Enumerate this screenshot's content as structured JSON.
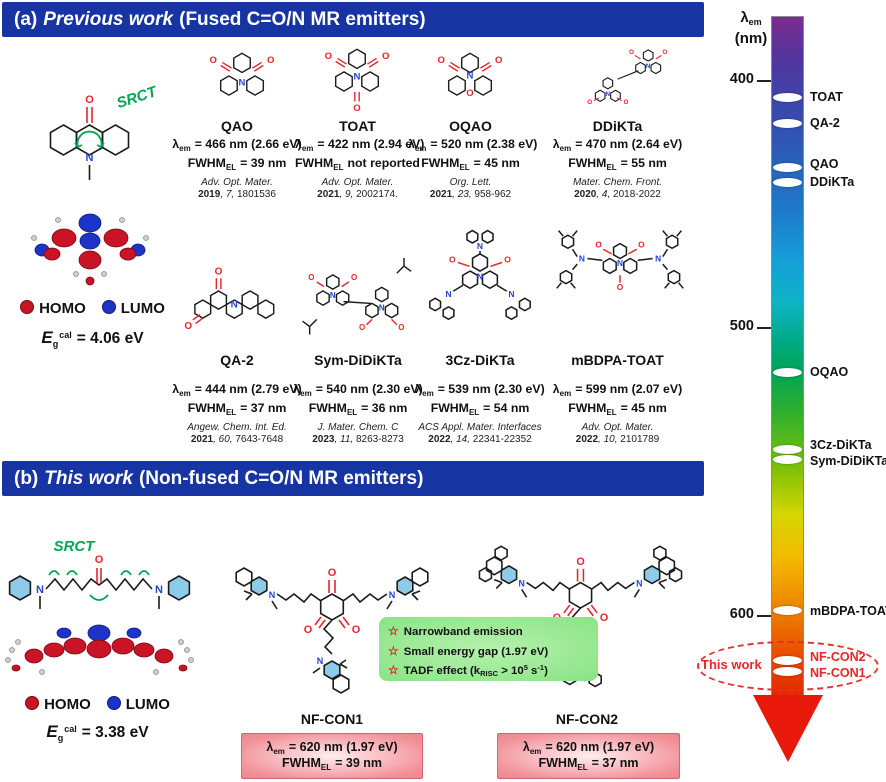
{
  "labels": {
    "lambda_sym": "λ",
    "lambda_sub": "em",
    "fwhm": "FWHM",
    "fwhm_sub": "EL",
    "homo": "HOMO",
    "lumo": "LUMO",
    "star": "☆",
    "eg_sym": "E",
    "eg_sub": "g",
    "eg_sup": "cal"
  },
  "panel_a": {
    "header": {
      "prefix": "(a)",
      "italic": "Previous work",
      "rest": "(Fused C=O/N MR emitters)"
    },
    "srct": "SRCT",
    "eg_value": "= 4.06 eV",
    "emitters": [
      {
        "name": "QAO",
        "lam": "= 466 nm (2.66 eV)",
        "fwhm": "= 39 nm",
        "journal": "Adv. Opt. Mater.",
        "year": "2019",
        "vol": ", 7, ",
        "pages": "1801536"
      },
      {
        "name": "TOAT",
        "lam": "= 422 nm (2.94 eV)",
        "fwhm": "not reported",
        "journal": "Adv. Opt. Mater.",
        "year": "2021",
        "vol": ", 9, ",
        "pages": "2002174."
      },
      {
        "name": "OQAO",
        "lam": "= 520 nm (2.38 eV)",
        "fwhm": "= 45 nm",
        "journal": "Org. Lett.",
        "year": "2021",
        "vol": ", 23, ",
        "pages": "958-962"
      },
      {
        "name": "DDiKTa",
        "lam": "= 470 nm (2.64 eV)",
        "fwhm": "= 55 nm",
        "journal": "Mater. Chem. Front.",
        "year": "2020",
        "vol": ", 4, ",
        "pages": "2018-2022"
      },
      {
        "name": "QA-2",
        "lam": "= 444 nm (2.79 eV)",
        "fwhm": "= 37 nm",
        "journal": "Angew. Chem. Int. Ed.",
        "year": "2021",
        "vol": ", 60, ",
        "pages": "7643-7648"
      },
      {
        "name": "Sym-DiDiKTa",
        "lam": "= 540 nm (2.30 eV)",
        "fwhm": "= 36 nm",
        "journal": "J. Mater. Chem. C",
        "year": "2023",
        "vol": ", 11, ",
        "pages": "8263-8273"
      },
      {
        "name": "3Cz-DiKTa",
        "lam": "= 539 nm (2.30 eV)",
        "fwhm": "= 54 nm",
        "journal": "ACS Appl. Mater. Interfaces",
        "year": "2022",
        "vol": ", 14, ",
        "pages": "22341-22352"
      },
      {
        "name": "mBDPA-TOAT",
        "lam": "= 599 nm (2.07 eV)",
        "fwhm": "= 45 nm",
        "journal": "Adv. Opt. Mater.",
        "year": "2022",
        "vol": ", 10, ",
        "pages": "2101789"
      }
    ]
  },
  "panel_b": {
    "header": {
      "prefix": "(b)",
      "italic": "This work",
      "rest": "(Non-fused C=O/N MR emitters)"
    },
    "srct": "SRCT",
    "eg_value": "= 3.38 eV",
    "features": {
      "f1": "Narrowband emission",
      "f2": "Small energy gap (1.97 eV)",
      "f3_pre": "TADF effect (k",
      "f3_sub": "RISC",
      "f3_mid": " > 10",
      "f3_sup": "5",
      "f3_mid2": " s",
      "f3_sup2": "-1",
      "f3_end": ")"
    },
    "emitters": [
      {
        "name": "NF-CON1",
        "lam": "= 620 nm (1.97 eV)",
        "fwhm": "= 39 nm"
      },
      {
        "name": "NF-CON2",
        "lam": "= 620 nm (1.97 eV)",
        "fwhm": "= 37 nm"
      }
    ]
  },
  "scale": {
    "title_sym": "λ",
    "title_sub": "em",
    "title_units": "(nm)",
    "ticks": [
      {
        "label": "400"
      },
      {
        "label": "500"
      },
      {
        "label": "600"
      }
    ],
    "markers": [
      {
        "label": "TOAT"
      },
      {
        "label": "QA-2"
      },
      {
        "label": "QAO"
      },
      {
        "label": "DDiKTa"
      },
      {
        "label": "OQAO"
      },
      {
        "label": "3Cz-DiKTa"
      },
      {
        "label": "Sym-DiDiKTa"
      },
      {
        "label": "mBDPA-TOAT"
      },
      {
        "label": "NF-CON2"
      },
      {
        "label": "NF-CON1"
      }
    ],
    "this_work": "This work"
  }
}
